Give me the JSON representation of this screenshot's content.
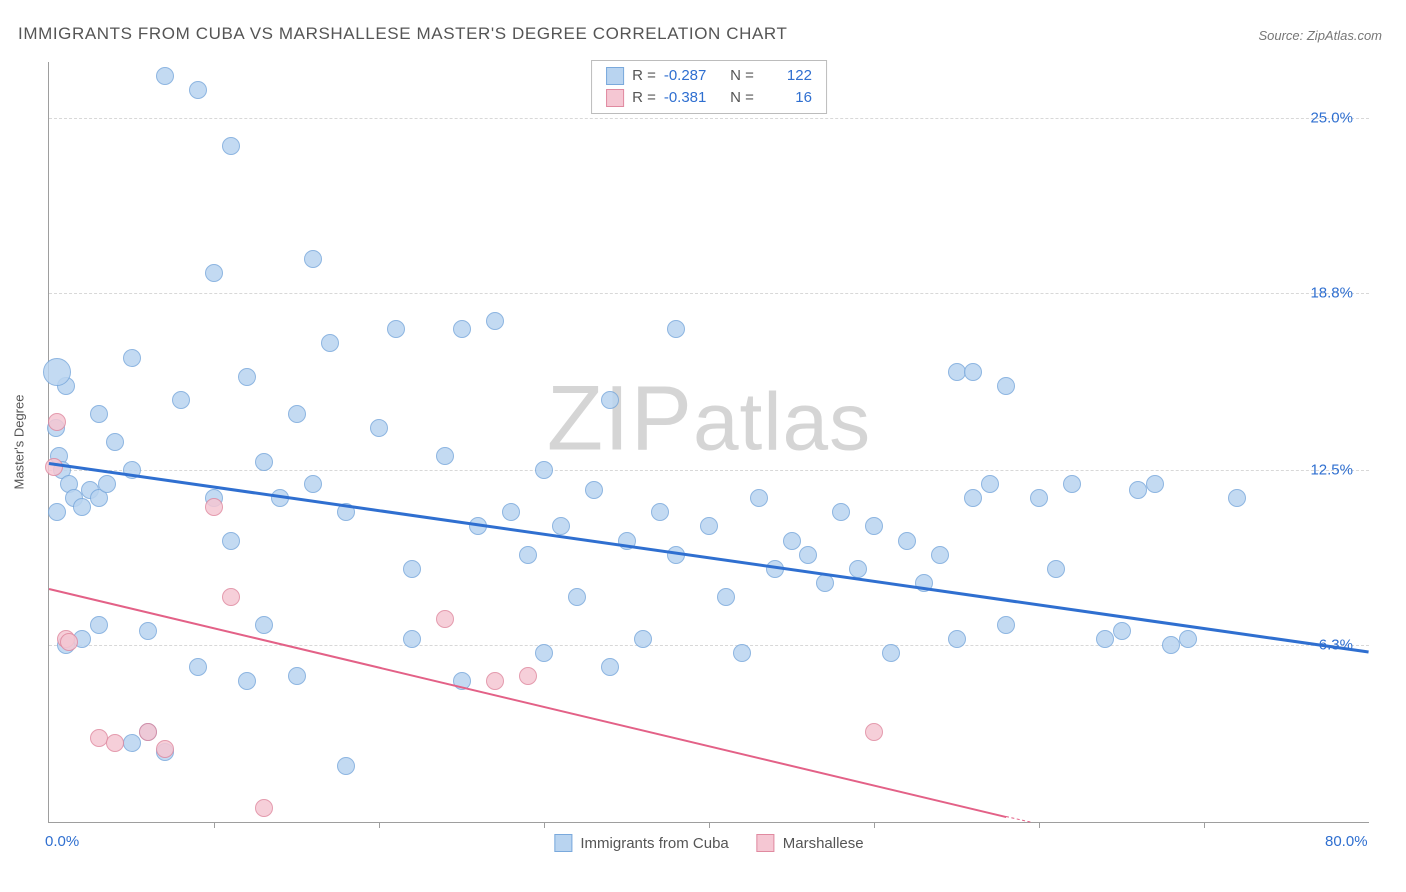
{
  "title": "IMMIGRANTS FROM CUBA VS MARSHALLESE MASTER'S DEGREE CORRELATION CHART",
  "source": "Source: ZipAtlas.com",
  "watermark_a": "ZIP",
  "watermark_b": "atlas",
  "ylabel": "Master's Degree",
  "chart": {
    "type": "scatter",
    "xlim": [
      0,
      80
    ],
    "ylim": [
      0,
      27
    ],
    "x_ticks": [
      0,
      80
    ],
    "x_tick_labels": [
      "0.0%",
      "80.0%"
    ],
    "x_minor_ticks": [
      10,
      20,
      30,
      40,
      50,
      60,
      70
    ],
    "y_ticks": [
      6.3,
      12.5,
      18.8,
      25.0
    ],
    "y_tick_labels": [
      "6.3%",
      "12.5%",
      "18.8%",
      "25.0%"
    ],
    "background_color": "#ffffff",
    "grid_color": "#d8d8d8",
    "axis_color": "#9e9e9e",
    "tick_label_color": "#2f6fd0",
    "series": [
      {
        "name": "Immigrants from Cuba",
        "fill": "#b9d4f0",
        "stroke": "#7aa9dc",
        "trend_color": "#2f6fd0",
        "trend_width": 2.5,
        "R": "-0.287",
        "N": "122",
        "trend": {
          "x1": 0,
          "y1": 12.8,
          "x2": 80,
          "y2": 6.1
        },
        "marker_r": 9,
        "points": [
          [
            1,
            15.5
          ],
          [
            0.5,
            16.0,
            14
          ],
          [
            0.4,
            14.0
          ],
          [
            0.6,
            13.0
          ],
          [
            0.8,
            12.5
          ],
          [
            1.2,
            12.0
          ],
          [
            0.5,
            11.0
          ],
          [
            1.5,
            11.5
          ],
          [
            2,
            11.2
          ],
          [
            2.5,
            11.8
          ],
          [
            3,
            11.5
          ],
          [
            3.5,
            12.0
          ],
          [
            3,
            14.5
          ],
          [
            4,
            13.5
          ],
          [
            5,
            12.5
          ],
          [
            5,
            16.5
          ],
          [
            7,
            26.5
          ],
          [
            8,
            15.0
          ],
          [
            6,
            6.8
          ],
          [
            3,
            7.0
          ],
          [
            2,
            6.5
          ],
          [
            1,
            6.3
          ],
          [
            5,
            2.8
          ],
          [
            6,
            3.2
          ],
          [
            7,
            2.5
          ],
          [
            9,
            26.0
          ],
          [
            10,
            19.5
          ],
          [
            11,
            24.0
          ],
          [
            12,
            15.8
          ],
          [
            10,
            11.5
          ],
          [
            11,
            10.0
          ],
          [
            9,
            5.5
          ],
          [
            12,
            5.0
          ],
          [
            13,
            12.8
          ],
          [
            14,
            11.5
          ],
          [
            15,
            14.5
          ],
          [
            13,
            7.0
          ],
          [
            16,
            12.0
          ],
          [
            16,
            20.0
          ],
          [
            17,
            17.0
          ],
          [
            18,
            11.0
          ],
          [
            15,
            5.2
          ],
          [
            18,
            2.0
          ],
          [
            20,
            14.0
          ],
          [
            21,
            17.5
          ],
          [
            22,
            9.0
          ],
          [
            22,
            6.5
          ],
          [
            24,
            13.0
          ],
          [
            25,
            17.5
          ],
          [
            25,
            5.0
          ],
          [
            26,
            10.5
          ],
          [
            27,
            17.8
          ],
          [
            28,
            11.0
          ],
          [
            29,
            9.5
          ],
          [
            30,
            6.0
          ],
          [
            30,
            12.5
          ],
          [
            31,
            10.5
          ],
          [
            32,
            8.0
          ],
          [
            33,
            11.8
          ],
          [
            34,
            15.0
          ],
          [
            35,
            10.0
          ],
          [
            36,
            6.5
          ],
          [
            37,
            11.0
          ],
          [
            38,
            17.5
          ],
          [
            38,
            9.5
          ],
          [
            34,
            5.5
          ],
          [
            40,
            10.5
          ],
          [
            41,
            8.0
          ],
          [
            42,
            6.0
          ],
          [
            43,
            11.5
          ],
          [
            44,
            9.0
          ],
          [
            45,
            10.0
          ],
          [
            46,
            9.5
          ],
          [
            47,
            8.5
          ],
          [
            48,
            11.0
          ],
          [
            49,
            9.0
          ],
          [
            50,
            10.5
          ],
          [
            51,
            6.0
          ],
          [
            52,
            10.0
          ],
          [
            53,
            8.5
          ],
          [
            54,
            9.5
          ],
          [
            55,
            16.0
          ],
          [
            55,
            6.5
          ],
          [
            56,
            11.5
          ],
          [
            57,
            12.0
          ],
          [
            58,
            7.0
          ],
          [
            58,
            15.5
          ],
          [
            60,
            11.5
          ],
          [
            61,
            9.0
          ],
          [
            62,
            12.0
          ],
          [
            64,
            6.5
          ],
          [
            65,
            6.8
          ],
          [
            66,
            11.8
          ],
          [
            67,
            12.0
          ],
          [
            68,
            6.3
          ],
          [
            69,
            6.5
          ],
          [
            72,
            11.5
          ],
          [
            56,
            16.0
          ]
        ]
      },
      {
        "name": "Marshallese",
        "fill": "#f5c7d3",
        "stroke": "#e08aa0",
        "trend_color": "#e36187",
        "trend_width": 2,
        "R": "-0.381",
        "N": "16",
        "trend": {
          "x1": 0,
          "y1": 8.3,
          "x2": 58,
          "y2": 0.2
        },
        "trend_dash": {
          "x1": 58,
          "y1": 0.2,
          "x2": 70,
          "y2": -1.4
        },
        "marker_r": 9,
        "points": [
          [
            0.5,
            14.2
          ],
          [
            0.3,
            12.6
          ],
          [
            1,
            6.5
          ],
          [
            1.2,
            6.4
          ],
          [
            3,
            3.0
          ],
          [
            4,
            2.8
          ],
          [
            6,
            3.2
          ],
          [
            7,
            2.6
          ],
          [
            10,
            11.2
          ],
          [
            11,
            8.0
          ],
          [
            13,
            0.5
          ],
          [
            24,
            7.2
          ],
          [
            27,
            5.0
          ],
          [
            29,
            5.2
          ],
          [
            50,
            3.2
          ]
        ]
      }
    ]
  },
  "legend_bottom": [
    {
      "label": "Immigrants from Cuba",
      "fill": "#b9d4f0",
      "stroke": "#7aa9dc"
    },
    {
      "label": "Marshallese",
      "fill": "#f5c7d3",
      "stroke": "#e08aa0"
    }
  ],
  "legend_top_labels": {
    "R": "R =",
    "N": "N ="
  }
}
